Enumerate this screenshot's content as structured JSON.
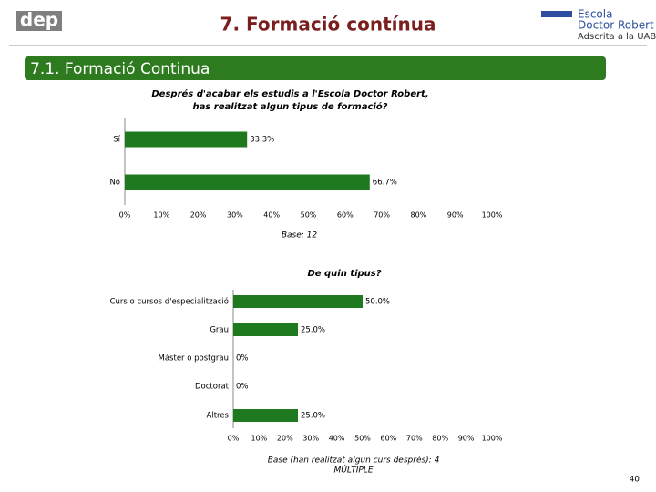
{
  "header": {
    "title": "7. Formació contínua",
    "logo_left": "dep",
    "logo_right": [
      "Escola",
      "Doctor Robert",
      "Adscrita a la UAB"
    ],
    "section": "7.1. Formació Continua",
    "page_number": "40"
  },
  "chart_data": [
    {
      "type": "bar",
      "orientation": "horizontal",
      "title": [
        "Després d'acabar els estudis a l'Escola Doctor Robert,",
        "has realitzat algun tipus de formació?"
      ],
      "categories": [
        "Sí",
        "No"
      ],
      "values": [
        33.3,
        66.7
      ],
      "value_labels": [
        "33.3%",
        "66.7%"
      ],
      "color": "#1f7a1f",
      "xlim": [
        0,
        100
      ],
      "xticks": [
        {
          "value": 0,
          "label": "0%"
        },
        {
          "value": 10,
          "label": "10%"
        },
        {
          "value": 20,
          "label": "20%"
        },
        {
          "value": 30,
          "label": "30%"
        },
        {
          "value": 40,
          "label": "40%"
        },
        {
          "value": 50,
          "label": "50%"
        },
        {
          "value": 60,
          "label": "60%"
        },
        {
          "value": 70,
          "label": "70%"
        },
        {
          "value": 80,
          "label": "80%"
        },
        {
          "value": 90,
          "label": "90%"
        },
        {
          "value": 100,
          "label": "100%"
        }
      ],
      "notes": [
        "Base: 12"
      ]
    },
    {
      "type": "bar",
      "orientation": "horizontal",
      "title": [
        "De quin tipus?"
      ],
      "categories": [
        "Curs o cursos d'especialització",
        "Grau",
        "Màster o postgrau",
        "Doctorat",
        "Altres"
      ],
      "values": [
        50,
        25,
        0,
        0,
        25
      ],
      "value_labels": [
        "50.0%",
        "25.0%",
        "0%",
        "0%",
        "25.0%"
      ],
      "color": "#1f7a1f",
      "xlim": [
        0,
        100
      ],
      "xticks": [
        {
          "value": 0,
          "label": "0%"
        },
        {
          "value": 10,
          "label": "10%"
        },
        {
          "value": 20,
          "label": "20%"
        },
        {
          "value": 30,
          "label": "30%"
        },
        {
          "value": 40,
          "label": "40%"
        },
        {
          "value": 50,
          "label": "50%"
        },
        {
          "value": 60,
          "label": "60%"
        },
        {
          "value": 70,
          "label": "70%"
        },
        {
          "value": 80,
          "label": "80%"
        },
        {
          "value": 90,
          "label": "90%"
        },
        {
          "value": 100,
          "label": "100%"
        }
      ],
      "notes": [
        "Base (han realitzat algun curs després): 4",
        "MÚLTIPLE"
      ]
    }
  ]
}
